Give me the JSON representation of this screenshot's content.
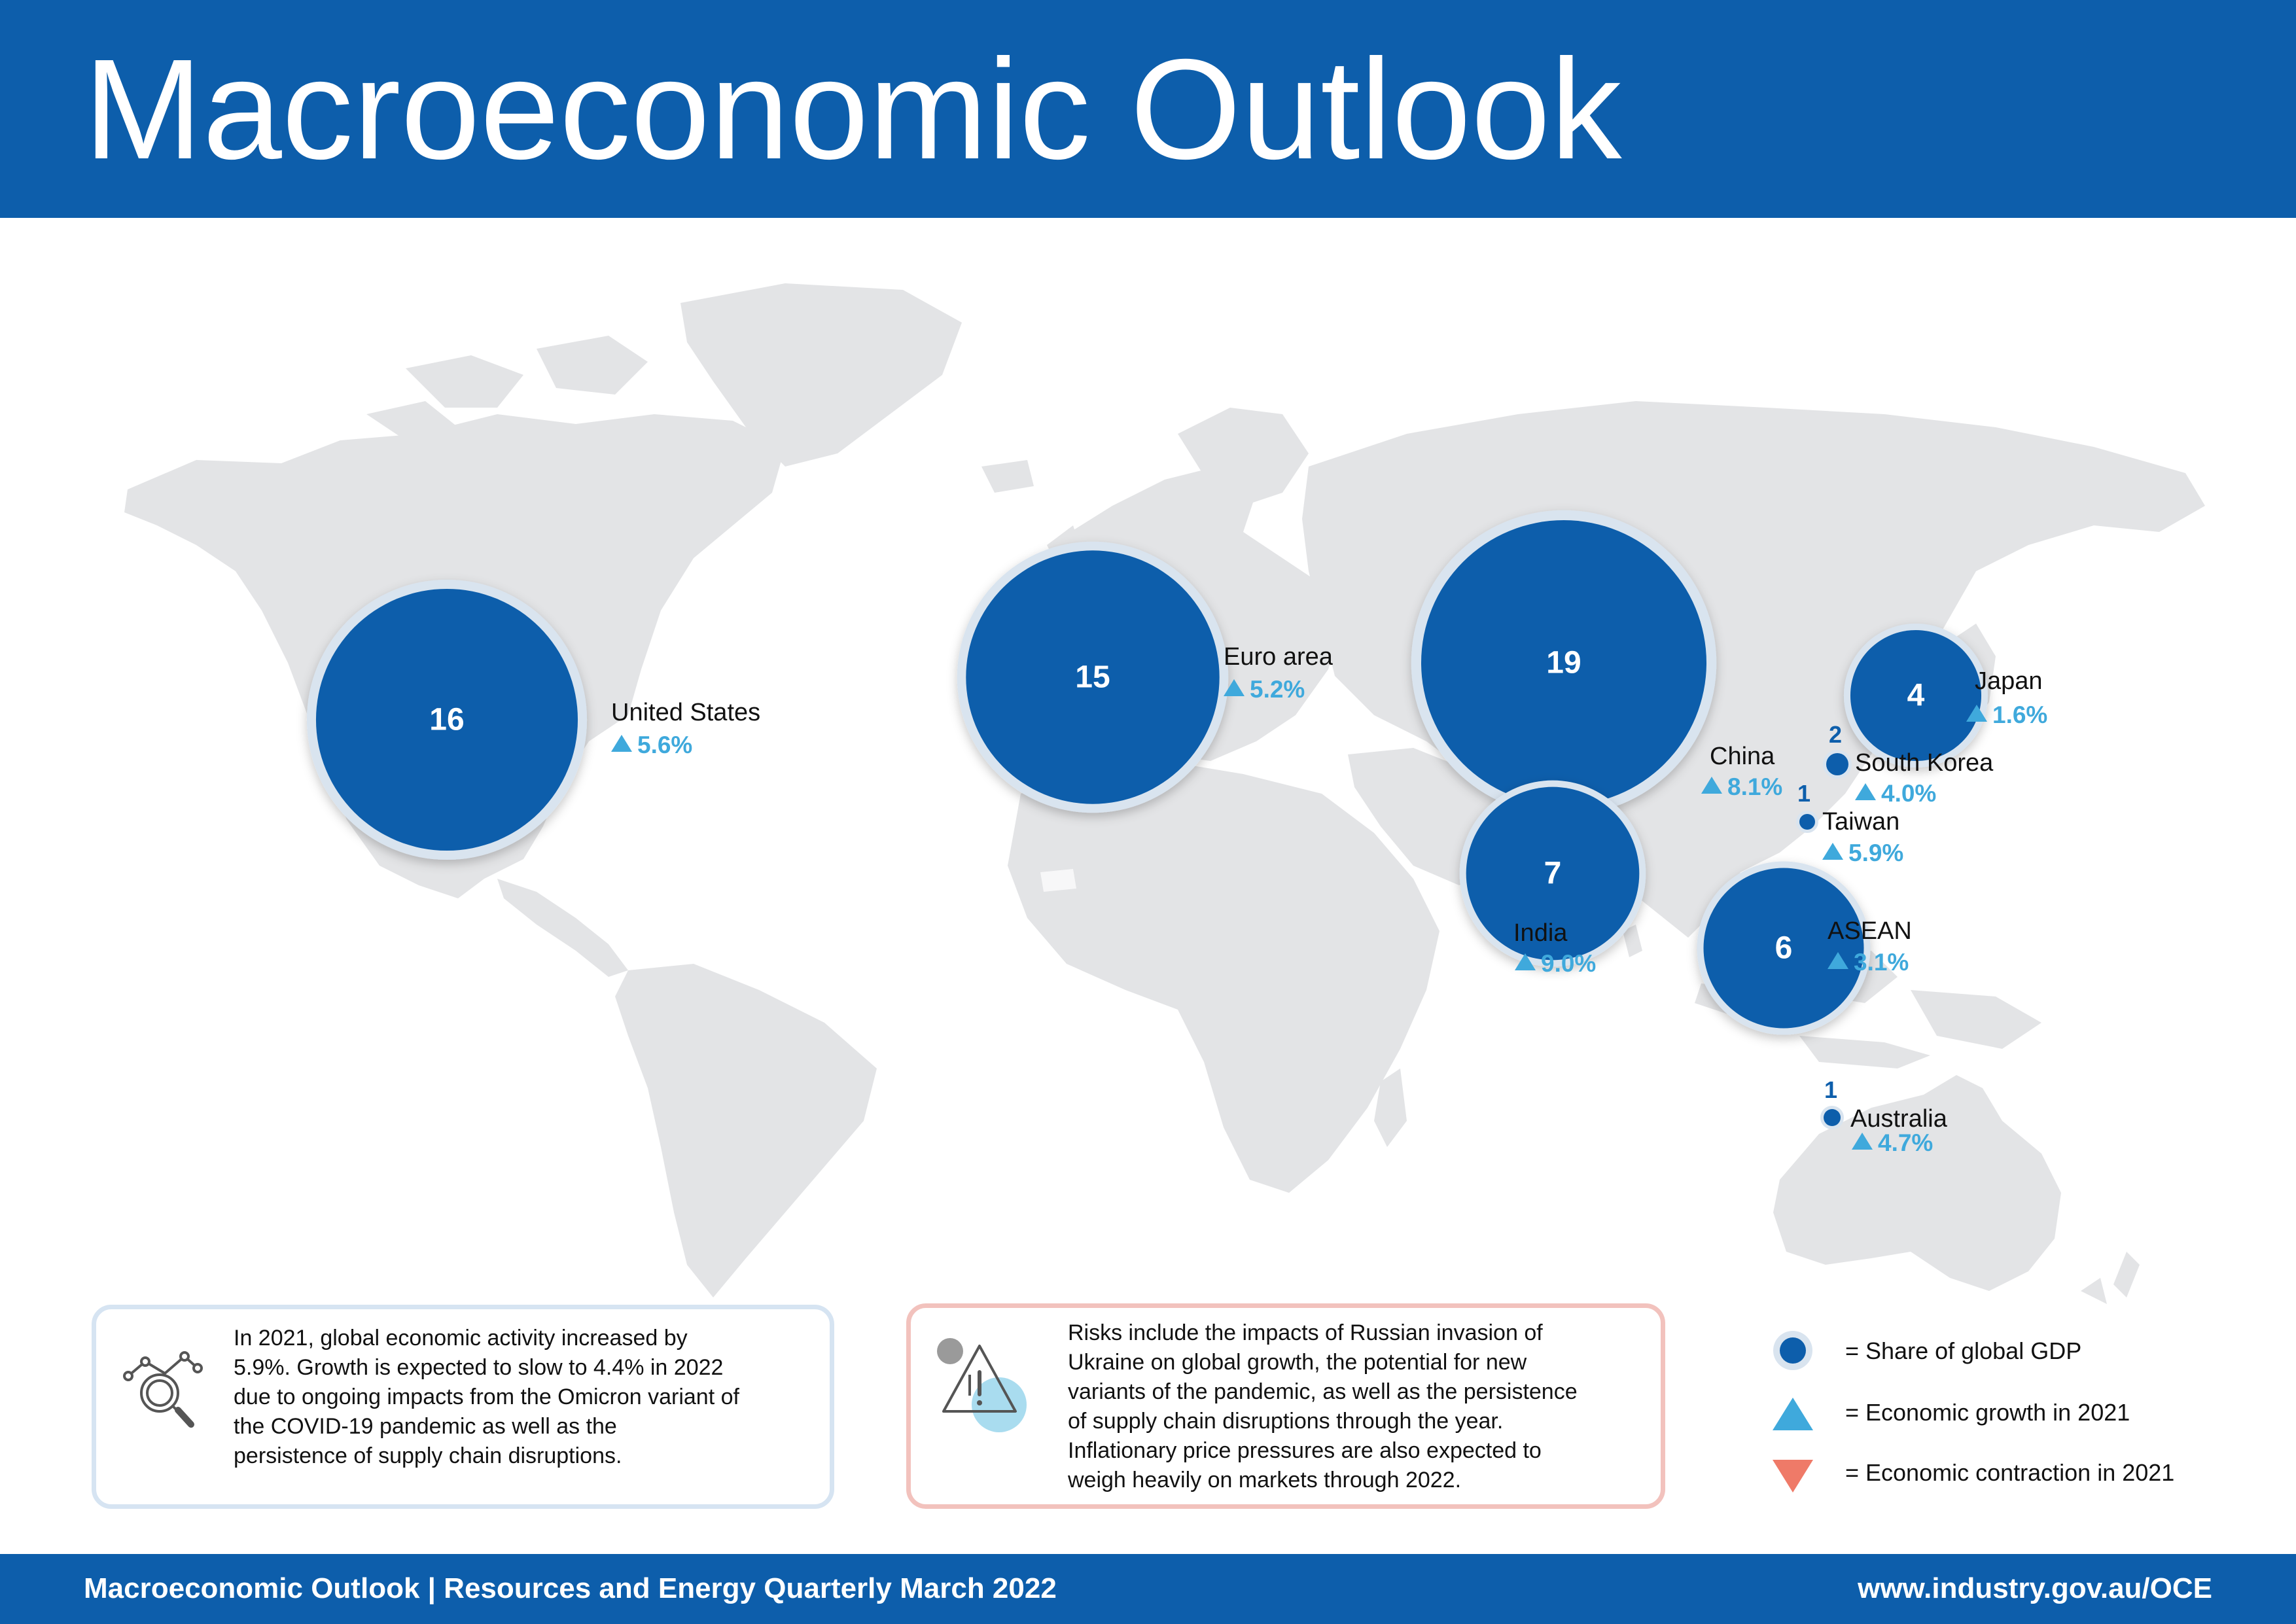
{
  "header": {
    "title": "Macroeconomic Outlook"
  },
  "regions": [
    {
      "id": "us",
      "name": "United States",
      "share": "16",
      "growth": "5.6%",
      "trend": "up"
    },
    {
      "id": "euro",
      "name": "Euro area",
      "share": "15",
      "growth": "5.2%",
      "trend": "up"
    },
    {
      "id": "china",
      "name": "China",
      "share": "19",
      "growth": "8.1%",
      "trend": "up"
    },
    {
      "id": "japan",
      "name": "Japan",
      "share": "4",
      "growth": "1.6%",
      "trend": "up"
    },
    {
      "id": "korea",
      "name": "South Korea",
      "share": "2",
      "growth": "4.0%",
      "trend": "up"
    },
    {
      "id": "taiwan",
      "name": "Taiwan",
      "share": "1",
      "growth": "5.9%",
      "trend": "up"
    },
    {
      "id": "india",
      "name": "India",
      "share": "7",
      "growth": "9.0%",
      "trend": "up"
    },
    {
      "id": "asean",
      "name": "ASEAN",
      "share": "6",
      "growth": "3.1%",
      "trend": "up"
    },
    {
      "id": "australia",
      "name": "Australia",
      "share": "1",
      "growth": "4.7%",
      "trend": "up"
    }
  ],
  "info_boxes": {
    "outlook": {
      "lines": [
        "In 2021, global economic activity increased by",
        "5.9%. Growth is expected to slow to 4.4% in 2022",
        "due to ongoing impacts from the Omicron variant of",
        "the COVID-19 pandemic  as well as the",
        "persistence of supply chain disruptions."
      ],
      "icon": "magnifier-chart-icon"
    },
    "risks": {
      "lines": [
        "Risks include the impacts of Russian invasion of",
        "Ukraine on global growth, the potential for new",
        "variants of the pandemic, as well as the persistence",
        "of supply chain disruptions through the year.",
        "Inflationary price pressures are also expected to",
        "weigh heavily on markets through 2022."
      ],
      "icon": "warning-triangle-icon"
    }
  },
  "legend": [
    {
      "symbol": "circle",
      "label": "= Share of global GDP",
      "color": "#0d5eab"
    },
    {
      "symbol": "triangle-up",
      "label": "= Economic growth in 2021",
      "color": "#3fa9dc"
    },
    {
      "symbol": "triangle-down",
      "label": "= Economic contraction in 2021",
      "color": "#ef7a68"
    }
  ],
  "footer": {
    "left": "Macroeconomic Outlook | Resources and Energy Quarterly March 2022",
    "right": "www.industry.gov.au/OCE"
  },
  "colors": {
    "primary": "#0d5eab",
    "growth": "#3fa9dc",
    "contraction": "#ef7a68",
    "land": "#e3e4e6"
  }
}
